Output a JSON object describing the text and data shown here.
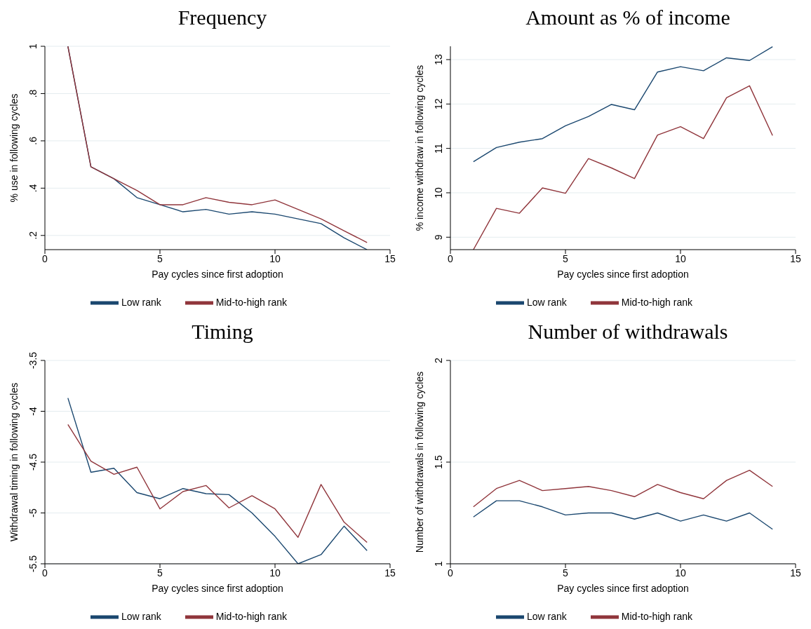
{
  "chart_data": [
    {
      "type": "line",
      "title": "Frequency",
      "xlabel": "Pay cycles since first adoption",
      "ylabel": "% use in following cycles",
      "x": [
        1,
        2,
        3,
        4,
        5,
        6,
        7,
        8,
        9,
        10,
        11,
        12,
        13,
        14
      ],
      "xlim": [
        0,
        15
      ],
      "xticks": [
        0,
        5,
        10,
        15
      ],
      "ylim": [
        0.14,
        1
      ],
      "yticks": [
        {
          "value": 0.2,
          "label": ".2"
        },
        {
          "value": 0.4,
          "label": ".4"
        },
        {
          "value": 0.6,
          "label": ".6"
        },
        {
          "value": 0.8,
          "label": ".8"
        },
        1
      ],
      "grid": "y",
      "legend": "bottom",
      "series": [
        {
          "name": "Low rank",
          "color": "#1a476f",
          "values": [
            1.0,
            0.49,
            0.44,
            0.36,
            0.33,
            0.3,
            0.31,
            0.29,
            0.3,
            0.29,
            0.27,
            0.25,
            0.19,
            0.14
          ]
        },
        {
          "name": "Mid-to-high rank",
          "color": "#90353b",
          "values": [
            1.0,
            0.49,
            0.44,
            0.39,
            0.33,
            0.33,
            0.36,
            0.34,
            0.33,
            0.35,
            0.31,
            0.27,
            0.22,
            0.17
          ]
        }
      ]
    },
    {
      "type": "line",
      "title": "Amount as % of income",
      "xlabel": "Pay cycles since first adoption",
      "ylabel": "% income withdraw in following cycles",
      "x": [
        1,
        2,
        3,
        4,
        5,
        6,
        7,
        8,
        9,
        10,
        11,
        12,
        13,
        14
      ],
      "xlim": [
        0,
        15
      ],
      "xticks": [
        0,
        5,
        10,
        15
      ],
      "ylim": [
        8.72,
        13.3
      ],
      "yticks": [
        9,
        10,
        11,
        12,
        13
      ],
      "grid": "y",
      "legend": "bottom",
      "series": [
        {
          "name": "Low rank",
          "color": "#1a476f",
          "values": [
            10.7,
            11.02,
            11.14,
            11.22,
            11.51,
            11.72,
            11.99,
            11.87,
            12.72,
            12.84,
            12.75,
            13.04,
            12.98,
            13.29
          ]
        },
        {
          "name": "Mid-to-high rank",
          "color": "#90353b",
          "values": [
            8.72,
            9.65,
            9.54,
            10.11,
            9.99,
            10.77,
            10.56,
            10.32,
            11.3,
            11.49,
            11.22,
            12.14,
            12.41,
            11.29
          ]
        }
      ]
    },
    {
      "type": "line",
      "title": "Timing",
      "xlabel": "Pay cycles since first adoption",
      "ylabel": "Withdrawal timing in following cycles",
      "x": [
        1,
        2,
        3,
        4,
        5,
        6,
        7,
        8,
        9,
        10,
        11,
        12,
        13,
        14
      ],
      "xlim": [
        0,
        15
      ],
      "xticks": [
        0,
        5,
        10,
        15
      ],
      "ylim": [
        -5.5,
        -3.5
      ],
      "yticks": [
        -5.5,
        -5,
        -4.5,
        -4,
        -3.5
      ],
      "grid": "y",
      "legend": "bottom",
      "series": [
        {
          "name": "Low rank",
          "color": "#1a476f",
          "values": [
            -3.87,
            -4.6,
            -4.56,
            -4.8,
            -4.86,
            -4.76,
            -4.81,
            -4.82,
            -5.0,
            -5.23,
            -5.5,
            -5.41,
            -5.13,
            -5.37
          ]
        },
        {
          "name": "Mid-to-high rank",
          "color": "#90353b",
          "values": [
            -4.13,
            -4.49,
            -4.62,
            -4.55,
            -4.96,
            -4.79,
            -4.73,
            -4.95,
            -4.83,
            -4.96,
            -5.24,
            -4.72,
            -5.09,
            -5.29
          ]
        }
      ]
    },
    {
      "type": "line",
      "title": "Number of withdrawals",
      "xlabel": "Pay cycles since first adoption",
      "ylabel": "Number of withdrawals in following cycles",
      "x": [
        1,
        2,
        3,
        4,
        5,
        6,
        7,
        8,
        9,
        10,
        11,
        12,
        13,
        14
      ],
      "xlim": [
        0,
        15
      ],
      "xticks": [
        0,
        5,
        10,
        15
      ],
      "ylim": [
        1,
        2
      ],
      "yticks": [
        1,
        1.5,
        2
      ],
      "grid": "y",
      "legend": "bottom",
      "series": [
        {
          "name": "Low rank",
          "color": "#1a476f",
          "values": [
            1.23,
            1.31,
            1.31,
            1.28,
            1.24,
            1.25,
            1.25,
            1.22,
            1.25,
            1.21,
            1.24,
            1.21,
            1.25,
            1.17
          ]
        },
        {
          "name": "Mid-to-high rank",
          "color": "#90353b",
          "values": [
            1.28,
            1.37,
            1.41,
            1.36,
            1.37,
            1.38,
            1.36,
            1.33,
            1.39,
            1.35,
            1.32,
            1.41,
            1.46,
            1.38
          ]
        }
      ]
    }
  ]
}
